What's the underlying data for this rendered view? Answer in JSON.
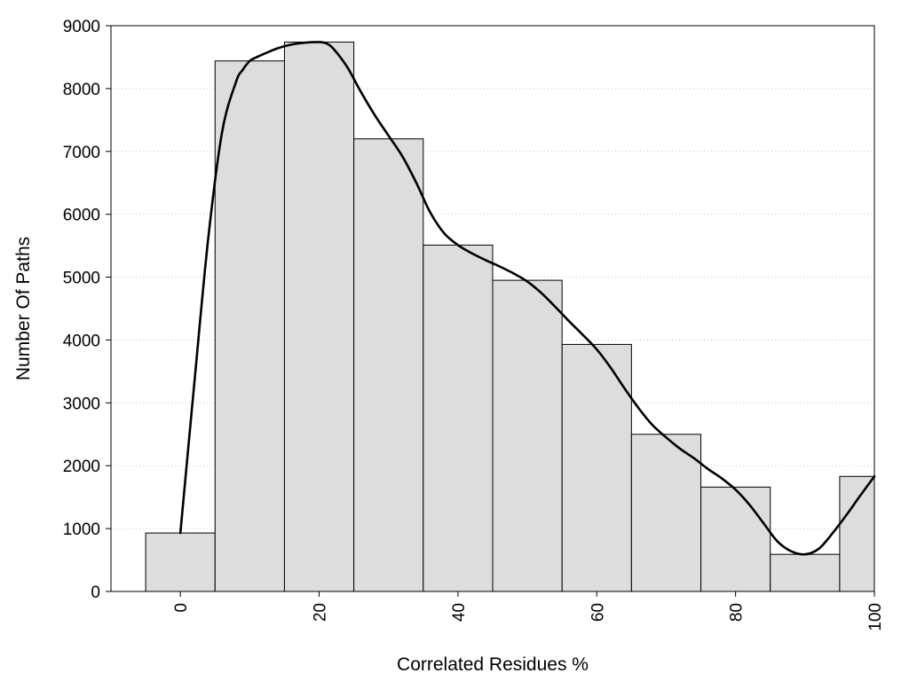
{
  "chart_data": {
    "type": "bar",
    "title": "",
    "xlabel": "Correlated Residues %",
    "ylabel": "Number Of Paths",
    "xlim": [
      -10,
      100
    ],
    "ylim": [
      0,
      9000
    ],
    "grid": "horizontal-dotted",
    "legend": "none",
    "bin_width": 10,
    "x_ticks": [
      {
        "value": 0,
        "label": "0"
      },
      {
        "value": 20,
        "label": "20"
      },
      {
        "value": 40,
        "label": "40"
      },
      {
        "value": 60,
        "label": "60"
      },
      {
        "value": 80,
        "label": "80"
      },
      {
        "value": 100,
        "label": "100"
      }
    ],
    "y_ticks": [
      {
        "value": 0,
        "label": "0"
      },
      {
        "value": 1000,
        "label": "1000"
      },
      {
        "value": 2000,
        "label": "2000"
      },
      {
        "value": 3000,
        "label": "3000"
      },
      {
        "value": 4000,
        "label": "4000"
      },
      {
        "value": 5000,
        "label": "5000"
      },
      {
        "value": 6000,
        "label": "6000"
      },
      {
        "value": 7000,
        "label": "7000"
      },
      {
        "value": 8000,
        "label": "8000"
      },
      {
        "value": 9000,
        "label": "9000"
      }
    ],
    "bins": [
      0,
      10,
      20,
      30,
      40,
      50,
      60,
      70,
      80,
      90,
      100
    ],
    "values": [
      930,
      8440,
      8740,
      7200,
      5510,
      4950,
      3930,
      2500,
      1660,
      590,
      1830
    ],
    "density_curve": {
      "x": [
        0,
        2,
        4,
        6,
        8,
        9,
        10,
        11,
        12,
        14,
        16,
        18,
        20,
        21,
        22,
        24,
        26,
        28,
        30,
        32,
        34,
        36,
        38,
        40,
        42,
        44,
        46,
        48,
        50,
        52,
        54,
        56,
        58,
        60,
        62,
        64,
        66,
        68,
        70,
        72,
        74,
        76,
        78,
        80,
        82,
        84,
        86,
        88,
        90,
        92,
        94,
        96,
        98,
        100
      ],
      "y": [
        930,
        3300,
        5600,
        7300,
        8100,
        8300,
        8440,
        8500,
        8550,
        8640,
        8700,
        8730,
        8740,
        8720,
        8640,
        8350,
        7950,
        7580,
        7250,
        6920,
        6500,
        6030,
        5700,
        5510,
        5380,
        5270,
        5170,
        5060,
        4930,
        4750,
        4530,
        4300,
        4080,
        3850,
        3560,
        3230,
        2920,
        2650,
        2450,
        2270,
        2120,
        1950,
        1800,
        1620,
        1380,
        1090,
        800,
        640,
        590,
        680,
        930,
        1220,
        1530,
        1830
      ],
      "color": "#000000"
    },
    "bar_fill": "#dddddd",
    "bar_stroke": "#000000"
  }
}
